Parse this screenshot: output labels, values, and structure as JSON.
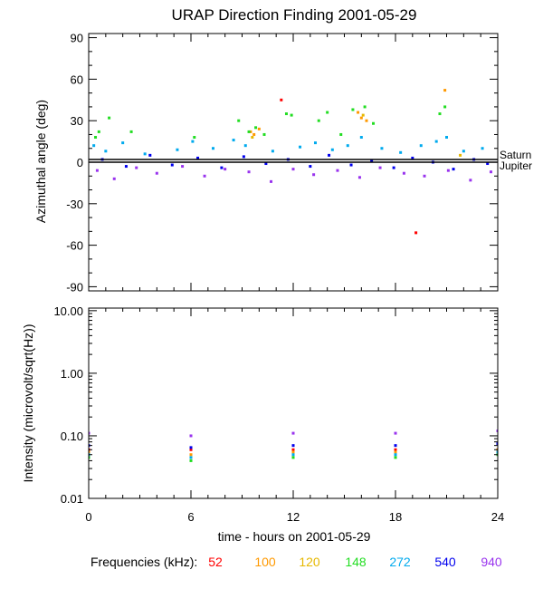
{
  "title": "URAP Direction Finding  2001-05-29",
  "xlabel": "time - hours on 2001-05-29",
  "frequency_legend": {
    "label": "Frequencies (kHz):",
    "items": [
      {
        "name": "52",
        "color": "#ff0000"
      },
      {
        "name": "100",
        "color": "#ff9900"
      },
      {
        "name": "120",
        "color": "#e6b800"
      },
      {
        "name": "148",
        "color": "#22dd22"
      },
      {
        "name": "272",
        "color": "#00aaee"
      },
      {
        "name": "540",
        "color": "#0000ee"
      },
      {
        "name": "940",
        "color": "#9933ee"
      }
    ]
  },
  "chart_data": [
    {
      "type": "scatter",
      "ylabel": "Azimuthal angle (deg)",
      "xlim": [
        0,
        24
      ],
      "ylim": [
        -93,
        93
      ],
      "xticks": [
        "0",
        "6",
        "12",
        "18",
        "24"
      ],
      "yticks": [
        "90",
        "60",
        "30",
        "0",
        "-30",
        "-60",
        "-90"
      ],
      "reference_lines": [
        {
          "name": "Saturn",
          "y": 2,
          "color": "#000000"
        },
        {
          "name": "Jupiter",
          "y": 0,
          "color": "#000000"
        }
      ],
      "series": [
        {
          "name": "52",
          "color": "#ff0000",
          "x": [
            19.2,
            11.3
          ],
          "y": [
            -51,
            45
          ]
        },
        {
          "name": "100",
          "color": "#ff9900",
          "x": [
            9.5,
            9.7,
            10.0,
            15.8,
            16.0,
            16.3,
            20.9
          ],
          "y": [
            22,
            20,
            24,
            36,
            32,
            30,
            52
          ]
        },
        {
          "name": "120",
          "color": "#e6b800",
          "x": [
            9.6,
            16.1,
            21.8
          ],
          "y": [
            18,
            34,
            5
          ]
        },
        {
          "name": "148",
          "color": "#22dd22",
          "x": [
            0.4,
            0.6,
            1.2,
            2.5,
            6.2,
            8.8,
            9.4,
            9.8,
            10.3,
            11.6,
            11.9,
            13.5,
            14.0,
            14.8,
            15.5,
            16.2,
            16.7,
            20.6,
            20.9
          ],
          "y": [
            18,
            22,
            32,
            22,
            18,
            30,
            22,
            25,
            20,
            35,
            34,
            30,
            36,
            20,
            38,
            40,
            28,
            35,
            40
          ]
        },
        {
          "name": "272",
          "color": "#00aaee",
          "x": [
            0.3,
            1.0,
            2.0,
            3.3,
            5.2,
            6.1,
            7.3,
            8.5,
            9.2,
            10.8,
            12.4,
            13.3,
            14.3,
            15.2,
            16.0,
            17.2,
            18.3,
            19.5,
            20.4,
            21.0,
            22.0,
            23.1
          ],
          "y": [
            12,
            8,
            14,
            6,
            9,
            15,
            10,
            16,
            12,
            8,
            11,
            14,
            9,
            12,
            18,
            10,
            7,
            12,
            15,
            18,
            8,
            10
          ]
        },
        {
          "name": "540",
          "color": "#0000ee",
          "x": [
            0.8,
            2.2,
            3.6,
            4.9,
            6.4,
            7.8,
            9.1,
            10.4,
            11.7,
            13.0,
            14.1,
            15.4,
            16.6,
            17.9,
            19.0,
            20.2,
            21.4,
            22.6,
            23.4
          ],
          "y": [
            2,
            -3,
            5,
            -2,
            3,
            -4,
            4,
            -1,
            2,
            -3,
            5,
            -2,
            1,
            -4,
            3,
            0,
            -5,
            2,
            -1
          ]
        },
        {
          "name": "940",
          "color": "#9933ee",
          "x": [
            0.5,
            1.5,
            2.8,
            4.0,
            5.5,
            6.8,
            8.0,
            9.4,
            10.7,
            12.0,
            13.2,
            14.6,
            15.9,
            17.1,
            18.5,
            19.7,
            21.1,
            22.4,
            23.6
          ],
          "y": [
            -6,
            -12,
            -4,
            -8,
            -3,
            -10,
            -5,
            -7,
            -14,
            -5,
            -9,
            -6,
            -11,
            -4,
            -8,
            -10,
            -6,
            -13,
            -7
          ]
        }
      ]
    },
    {
      "type": "scatter",
      "ylabel": "Intensity (microvolt/sqrt(Hz))",
      "yscale": "log",
      "xlim": [
        0,
        24
      ],
      "ylim": [
        0.01,
        11
      ],
      "xticks": [
        "0",
        "6",
        "12",
        "18",
        "24"
      ],
      "yticks": [
        "10.00",
        "1.00",
        "0.10",
        "0.01"
      ],
      "series": [
        {
          "name": "52",
          "color": "#ff0000",
          "x": [
            0,
            6,
            12,
            18,
            24
          ],
          "y": [
            0.06,
            0.06,
            0.06,
            0.06,
            0.06
          ]
        },
        {
          "name": "100",
          "color": "#ff9900",
          "x": [
            0,
            6,
            12,
            18,
            24
          ],
          "y": [
            0.055,
            0.05,
            0.055,
            0.055,
            0.06
          ]
        },
        {
          "name": "120",
          "color": "#e6b800",
          "x": [
            0,
            6,
            12,
            18,
            24
          ],
          "y": [
            0.05,
            0.045,
            0.05,
            0.05,
            0.055
          ]
        },
        {
          "name": "148",
          "color": "#22dd22",
          "x": [
            0,
            6,
            12,
            18,
            24
          ],
          "y": [
            0.045,
            0.04,
            0.045,
            0.045,
            0.05
          ]
        },
        {
          "name": "272",
          "color": "#00aaee",
          "x": [
            0,
            6,
            12,
            18,
            24
          ],
          "y": [
            0.05,
            0.045,
            0.05,
            0.05,
            0.055
          ]
        },
        {
          "name": "540",
          "color": "#0000ee",
          "x": [
            0,
            6,
            12,
            18,
            24
          ],
          "y": [
            0.07,
            0.065,
            0.07,
            0.07,
            0.075
          ]
        },
        {
          "name": "940",
          "color": "#9933ee",
          "x": [
            0,
            6,
            12,
            18,
            24
          ],
          "y": [
            0.11,
            0.1,
            0.11,
            0.11,
            0.12
          ]
        }
      ]
    }
  ]
}
